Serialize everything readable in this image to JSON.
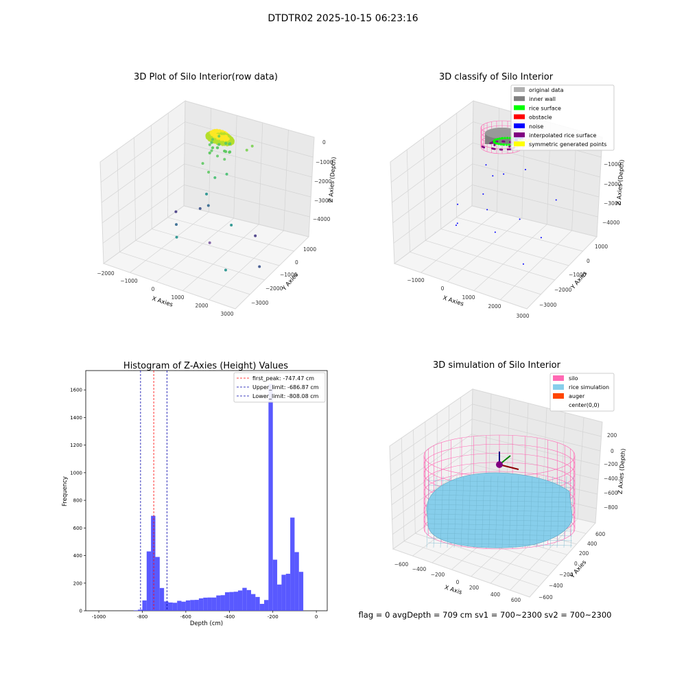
{
  "figure": {
    "suptitle": "DTDTR02 2025-10-15 06:23:16",
    "footer": "flag = 0     avgDepth = 709 cm  sv1 = 700~2300  sv2 = 700~2300"
  },
  "chart_data": [
    {
      "type": "scatter",
      "title": "3D Plot of Silo Interior(row data)",
      "xlabel": "X Axies",
      "ylabel": "Y Axies",
      "zlabel": "Z Axies (Depth)",
      "x_ticks": [
        "−2000",
        "−1000",
        "0",
        "1000",
        "2000",
        "3000"
      ],
      "y_ticks": [
        "−3000",
        "−2000",
        "−1000",
        "0",
        "1000"
      ],
      "z_ticks": [
        "−4000",
        "−3000",
        "−2000",
        "−1000",
        "0"
      ],
      "colormap_colors": [
        "#3b528b",
        "#21918c",
        "#5ec962",
        "#b5de2b",
        "#fde725"
      ],
      "cluster_ring": {
        "z_center": -200,
        "radius": 500
      },
      "scatter_points": [
        {
          "x": 1500,
          "y": 500,
          "z": -400,
          "color": "#7ad151"
        },
        {
          "x": 1400,
          "y": 300,
          "z": -500,
          "color": "#7ad151"
        },
        {
          "x": -100,
          "y": -200,
          "z": -1300,
          "color": "#5ec962"
        },
        {
          "x": 200,
          "y": -300,
          "z": -1500,
          "color": "#5ec962"
        },
        {
          "x": 400,
          "y": -200,
          "z": -1700,
          "color": "#44bf70"
        },
        {
          "x": 700,
          "y": 100,
          "z": -1600,
          "color": "#44bf70"
        },
        {
          "x": 300,
          "y": -600,
          "z": -2200,
          "color": "#21918c"
        },
        {
          "x": 500,
          "y": -800,
          "z": -2500,
          "color": "#31688e"
        },
        {
          "x": 100,
          "y": -700,
          "z": -2800,
          "color": "#3b528b"
        },
        {
          "x": 1500,
          "y": -900,
          "z": -2900,
          "color": "#21918c"
        },
        {
          "x": 2300,
          "y": -600,
          "z": -3200,
          "color": "#443983"
        },
        {
          "x": -1200,
          "y": -200,
          "z": -3600,
          "color": "#443983"
        },
        {
          "x": -1000,
          "y": -500,
          "z": -3900,
          "color": "#31688e"
        },
        {
          "x": -800,
          "y": -800,
          "z": -4200,
          "color": "#21918c"
        },
        {
          "x": 800,
          "y": -1200,
          "z": -3700,
          "color": "#7b5aa0"
        },
        {
          "x": 1700,
          "y": -1600,
          "z": -4300,
          "color": "#21918c"
        },
        {
          "x": 2900,
          "y": -1300,
          "z": -3900,
          "color": "#3b528b"
        }
      ]
    },
    {
      "type": "scatter",
      "title": "3D classify of Silo Interior",
      "xlabel": "X Axies",
      "ylabel": "Y Axies",
      "zlabel": "Z Axies (Depth)",
      "x_ticks": [
        "−1000",
        "0",
        "1000",
        "2000",
        "3000"
      ],
      "y_ticks": [
        "−3000",
        "−2000",
        "−1000",
        "0",
        "1000"
      ],
      "z_ticks": [
        "−4000",
        "−3000",
        "−2000",
        "−1000"
      ],
      "legend": [
        {
          "label": "original data",
          "color": "#b0b0b0"
        },
        {
          "label": "inner wall",
          "color": "#808080"
        },
        {
          "label": "rice surface",
          "color": "#00ff00"
        },
        {
          "label": "obstacle",
          "color": "#ff0000"
        },
        {
          "label": "noise",
          "color": "#0000ff"
        },
        {
          "label": "interpolated rice surface",
          "color": "#800080"
        },
        {
          "label": "symmetric generated points",
          "color": "#ffff00"
        }
      ],
      "noise_points": [
        {
          "x": 100,
          "y": -500,
          "z": -1200
        },
        {
          "x": 400,
          "y": -600,
          "z": -1500
        },
        {
          "x": 700,
          "y": -400,
          "z": -1400
        },
        {
          "x": 1200,
          "y": 200,
          "z": -1300
        },
        {
          "x": 200,
          "y": -900,
          "z": -2200
        },
        {
          "x": 500,
          "y": -1200,
          "z": -2600
        },
        {
          "x": -900,
          "y": -600,
          "z": -3200
        },
        {
          "x": -800,
          "y": -900,
          "z": -3900
        },
        {
          "x": 1500,
          "y": -800,
          "z": -2800
        },
        {
          "x": 2500,
          "y": -1200,
          "z": -3000
        },
        {
          "x": 2200,
          "y": -1900,
          "z": -3900
        },
        {
          "x": 900,
          "y": -1400,
          "z": -3300
        },
        {
          "x": 2900,
          "y": -900,
          "z": -1400
        },
        {
          "x": -600,
          "y": -1200,
          "z": -3600
        }
      ]
    },
    {
      "type": "bar",
      "title": "Histogram of Z-Axies (Height) Values",
      "xlabel": "Depth (cm)",
      "ylabel": "Frequency",
      "xlim": [
        -1060,
        50
      ],
      "ylim": [
        0,
        1740
      ],
      "x_ticks": [
        -1000,
        -800,
        -600,
        -400,
        -200,
        0
      ],
      "y_ticks": [
        0,
        200,
        400,
        600,
        800,
        1000,
        1200,
        1400,
        1600
      ],
      "bin_width": 20,
      "bar_color": "#5050ff",
      "bins": [
        {
          "x": -840,
          "value": 3
        },
        {
          "x": -820,
          "value": 8
        },
        {
          "x": -800,
          "value": 75
        },
        {
          "x": -780,
          "value": 430
        },
        {
          "x": -760,
          "value": 688
        },
        {
          "x": -740,
          "value": 390
        },
        {
          "x": -720,
          "value": 165
        },
        {
          "x": -700,
          "value": 68
        },
        {
          "x": -680,
          "value": 60
        },
        {
          "x": -660,
          "value": 58
        },
        {
          "x": -640,
          "value": 72
        },
        {
          "x": -620,
          "value": 66
        },
        {
          "x": -600,
          "value": 75
        },
        {
          "x": -580,
          "value": 78
        },
        {
          "x": -560,
          "value": 79
        },
        {
          "x": -540,
          "value": 90
        },
        {
          "x": -520,
          "value": 95
        },
        {
          "x": -500,
          "value": 96
        },
        {
          "x": -480,
          "value": 96
        },
        {
          "x": -460,
          "value": 111
        },
        {
          "x": -440,
          "value": 113
        },
        {
          "x": -420,
          "value": 134
        },
        {
          "x": -400,
          "value": 136
        },
        {
          "x": -380,
          "value": 138
        },
        {
          "x": -360,
          "value": 147
        },
        {
          "x": -340,
          "value": 166
        },
        {
          "x": -320,
          "value": 150
        },
        {
          "x": -300,
          "value": 121
        },
        {
          "x": -280,
          "value": 100
        },
        {
          "x": -260,
          "value": 50
        },
        {
          "x": -240,
          "value": 78
        },
        {
          "x": -220,
          "value": 1643
        },
        {
          "x": -200,
          "value": 370
        },
        {
          "x": -180,
          "value": 190
        },
        {
          "x": -160,
          "value": 261
        },
        {
          "x": -140,
          "value": 268
        },
        {
          "x": -120,
          "value": 675
        },
        {
          "x": -100,
          "value": 425
        },
        {
          "x": -80,
          "value": 282
        }
      ],
      "vlines": [
        {
          "label": "first_peak: -747.47 cm",
          "x": -747.47,
          "color": "#ff0000"
        },
        {
          "label": "Upper_limit: -686.87 cm",
          "x": -686.87,
          "color": "#0000aa"
        },
        {
          "label": "Lower_limit: -808.08 cm",
          "x": -808.08,
          "color": "#0000aa"
        }
      ]
    },
    {
      "type": "scatter",
      "title": "3D simulation of Silo Interior",
      "xlabel": "X Axis",
      "ylabel": "Y Axies",
      "zlabel": "Z Axies (Depth)",
      "x_ticks": [
        "−600",
        "−400",
        "−200",
        "0",
        "200",
        "400",
        "600"
      ],
      "y_ticks": [
        "−600",
        "−400",
        "−200",
        "0",
        "200",
        "400",
        "600"
      ],
      "z_ticks": [
        "−800",
        "−600",
        "−400",
        "−200",
        "0",
        "200"
      ],
      "legend": [
        {
          "label": "silo",
          "color": "#ff69b4"
        },
        {
          "label": "rice simulation",
          "color": "#87ceeb"
        },
        {
          "label": "auger",
          "color": "#ff4500"
        },
        {
          "label": "center(0,0)",
          "color": ""
        }
      ]
    }
  ]
}
